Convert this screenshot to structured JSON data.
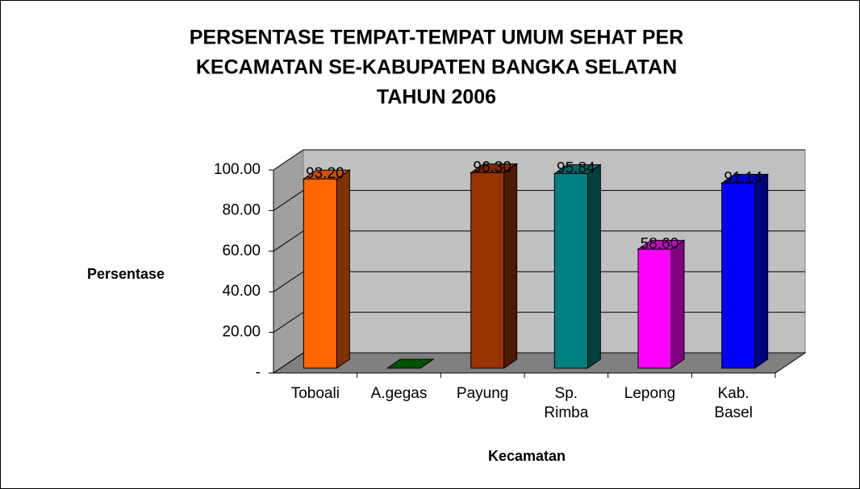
{
  "chart_data": {
    "type": "bar3d",
    "title": [
      "PERSENTASE TEMPAT-TEMPAT UMUM SEHAT PER",
      "KECAMATAN SE-KABUPATEN BANGKA SELATAN",
      "TAHUN 2006"
    ],
    "y_label": "Persentase",
    "x_label": "Kecamatan",
    "categories": [
      "Toboali",
      "A.gegas",
      "Payung",
      "Sp. Rimba",
      "Lepong",
      "Kab. Basel"
    ],
    "values": [
      93.2,
      0,
      96.3,
      95.84,
      58.6,
      91.14
    ],
    "value_labels": [
      "93.20",
      null,
      "96.30",
      "95.84",
      "58.60",
      "91.14"
    ],
    "colors": [
      "#ff6600",
      "#006600",
      "#993300",
      "#008080",
      "#ff00ff",
      "#0000ff"
    ],
    "ylim": [
      0,
      100
    ],
    "yticks": [
      {
        "value": 0,
        "label": "-"
      },
      {
        "value": 20,
        "label": "20.00"
      },
      {
        "value": 40,
        "label": "40.00"
      },
      {
        "value": 60,
        "label": "60.00"
      },
      {
        "value": 80,
        "label": "80.00"
      },
      {
        "value": 100,
        "label": "100.00"
      }
    ],
    "grid": true
  }
}
